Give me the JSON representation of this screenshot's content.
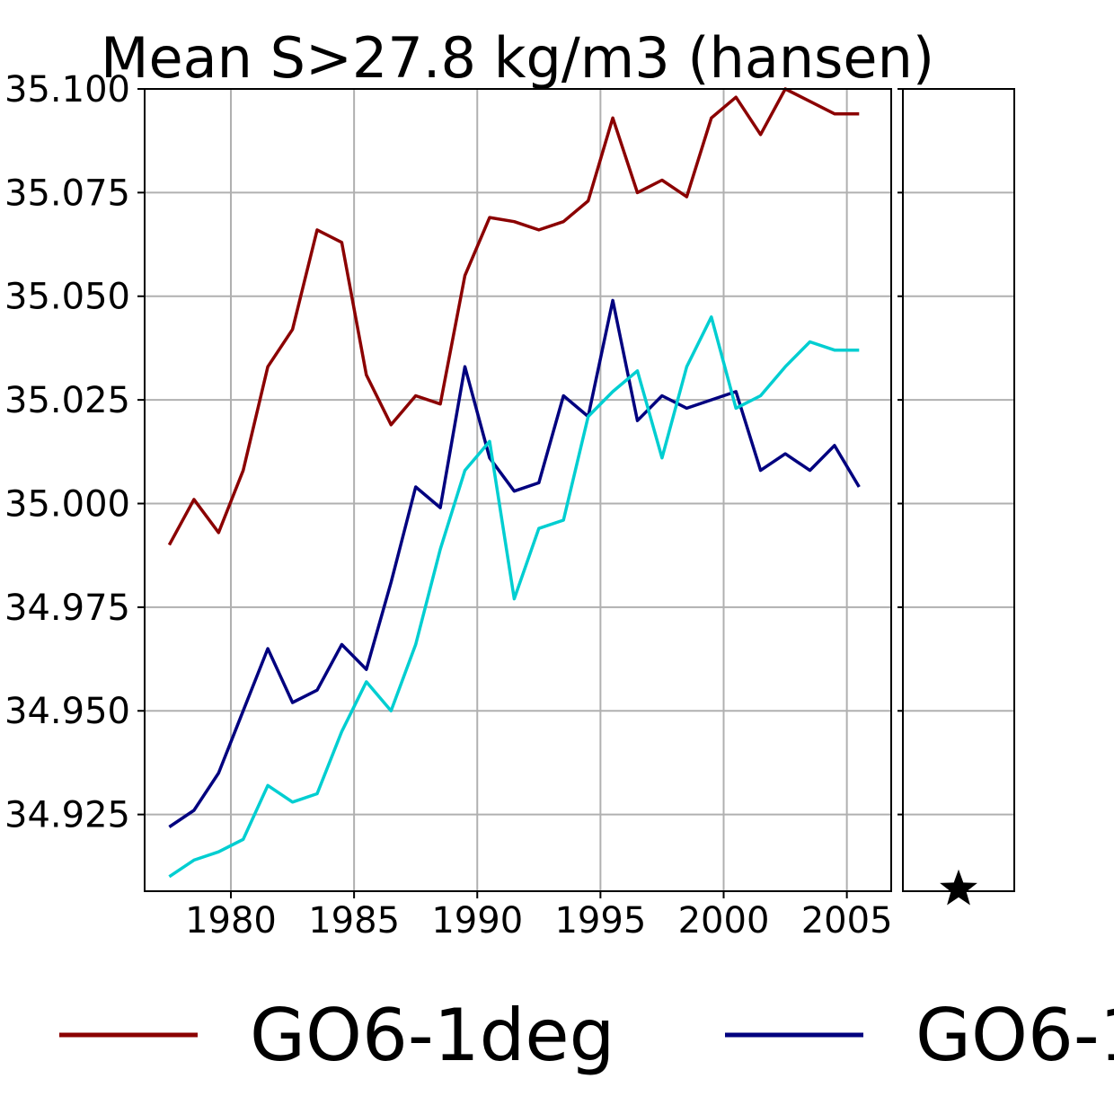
{
  "chart_data": {
    "type": "line",
    "title": "Mean S>27.8 kg/m3 (hansen)",
    "xlabel": "",
    "ylabel": "",
    "xlim": [
      1976.5,
      2006.8
    ],
    "ylim": [
      34.9065,
      35.1
    ],
    "grid": true,
    "x_ticks": [
      "1980",
      "1985",
      "1990",
      "1995",
      "2000",
      "2005"
    ],
    "y_ticks": [
      "34.925",
      "34.950",
      "34.975",
      "35.000",
      "35.025",
      "35.050",
      "35.075",
      "35.100"
    ],
    "legend_position": "bottom",
    "x": [
      1977.5,
      1978.5,
      1979.5,
      1980.5,
      1981.5,
      1982.5,
      1983.5,
      1984.5,
      1985.5,
      1986.5,
      1987.5,
      1988.5,
      1989.5,
      1990.5,
      1991.5,
      1992.5,
      1993.5,
      1994.5,
      1995.5,
      1996.5,
      1997.5,
      1998.5,
      1999.5,
      2000.5,
      2001.5,
      2002.5,
      2003.5,
      2004.5,
      2005.5
    ],
    "series": [
      {
        "name": "GO6-1deg",
        "color": "#8b0000",
        "values": [
          34.99,
          35.001,
          34.993,
          35.008,
          35.033,
          35.042,
          35.066,
          35.063,
          35.031,
          35.019,
          35.026,
          35.024,
          35.055,
          35.069,
          35.068,
          35.066,
          35.068,
          35.073,
          35.093,
          35.075,
          35.078,
          35.074,
          35.093,
          35.098,
          35.089,
          35.1,
          35.097,
          35.094,
          35.094
        ]
      },
      {
        "name": "GO6-1",
        "color": "#00007f",
        "values": [
          34.922,
          34.926,
          34.935,
          34.95,
          34.965,
          34.952,
          34.955,
          34.966,
          34.96,
          34.981,
          35.004,
          34.999,
          35.033,
          35.011,
          35.003,
          35.005,
          35.026,
          35.021,
          35.049,
          35.02,
          35.026,
          35.023,
          35.025,
          35.027,
          35.008,
          35.012,
          35.008,
          35.014,
          35.004
        ]
      },
      {
        "name": "",
        "color": "#00ced1",
        "values": [
          34.91,
          34.914,
          34.916,
          34.919,
          34.932,
          34.928,
          34.93,
          34.945,
          34.957,
          34.95,
          34.966,
          34.989,
          35.008,
          35.015,
          34.977,
          34.994,
          34.996,
          35.021,
          35.027,
          35.032,
          35.011,
          35.033,
          35.045,
          35.023,
          35.026,
          35.033,
          35.039,
          35.037,
          35.037
        ]
      }
    ],
    "side_panel": {
      "marker": "star",
      "marker_color": "#000000",
      "value": 34.907
    }
  }
}
